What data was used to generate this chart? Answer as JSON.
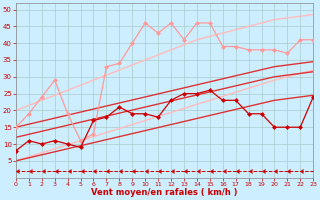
{
  "x": [
    0,
    1,
    2,
    3,
    4,
    5,
    6,
    7,
    8,
    9,
    10,
    11,
    12,
    13,
    14,
    15,
    16,
    17,
    18,
    19,
    20,
    21,
    22,
    23
  ],
  "series": [
    {
      "label": "light_pink_with_markers",
      "y": [
        15,
        19,
        24,
        29,
        19,
        11,
        13,
        33,
        34,
        40,
        46,
        43,
        46,
        41,
        46,
        46,
        39,
        39,
        38,
        38,
        38,
        37,
        41,
        41
      ],
      "color": "#ff9999",
      "lw": 0.9,
      "marker": "D",
      "ms": 2.0,
      "linestyle": "-",
      "zorder": 3
    },
    {
      "label": "dark_red_with_markers",
      "y": [
        8,
        11,
        10,
        11,
        10,
        9,
        17,
        18,
        21,
        19,
        19,
        18,
        23,
        25,
        25,
        26,
        23,
        23,
        19,
        19,
        15,
        15,
        15,
        24
      ],
      "color": "#cc0000",
      "lw": 0.9,
      "marker": "D",
      "ms": 2.0,
      "linestyle": "-",
      "zorder": 3
    },
    {
      "label": "regression_pink_upper",
      "y": [
        20,
        21.5,
        23,
        24.5,
        26,
        27.5,
        29,
        30.5,
        32,
        33.5,
        35,
        36.5,
        38,
        39.5,
        41,
        42,
        43,
        44,
        45,
        46,
        47,
        47.5,
        48,
        48.5
      ],
      "color": "#ffbbbb",
      "lw": 1.0,
      "marker": null,
      "ms": 0,
      "linestyle": "-",
      "zorder": 2
    },
    {
      "label": "regression_pink_lower",
      "y": [
        5,
        6.2,
        7.4,
        8.6,
        9.8,
        11,
        12.2,
        13.4,
        14.6,
        15.8,
        17,
        18.2,
        19.4,
        20.6,
        21.8,
        23,
        24.2,
        25.4,
        26.6,
        27.8,
        29,
        30,
        31,
        32
      ],
      "color": "#ffbbbb",
      "lw": 1.0,
      "marker": null,
      "ms": 0,
      "linestyle": "-",
      "zorder": 2
    },
    {
      "label": "regression_red_upper",
      "y": [
        15,
        15.9,
        16.8,
        17.7,
        18.6,
        19.5,
        20.4,
        21.3,
        22.2,
        23.1,
        24,
        24.9,
        25.8,
        26.7,
        27.6,
        28.5,
        29.4,
        30.3,
        31.2,
        32.1,
        33,
        33.5,
        34,
        34.5
      ],
      "color": "#dd3333",
      "lw": 1.0,
      "marker": null,
      "ms": 0,
      "linestyle": "-",
      "zorder": 2
    },
    {
      "label": "regression_red_mid",
      "y": [
        12,
        12.9,
        13.8,
        14.7,
        15.6,
        16.5,
        17.4,
        18.3,
        19.2,
        20.1,
        21,
        21.9,
        22.8,
        23.7,
        24.6,
        25.5,
        26.4,
        27.3,
        28.2,
        29.1,
        30,
        30.5,
        31,
        31.5
      ],
      "color": "#dd3333",
      "lw": 1.0,
      "marker": null,
      "ms": 0,
      "linestyle": "-",
      "zorder": 2
    },
    {
      "label": "regression_red_lower",
      "y": [
        5,
        5.9,
        6.8,
        7.7,
        8.6,
        9.5,
        10.4,
        11.3,
        12.2,
        13.1,
        14,
        14.9,
        15.8,
        16.7,
        17.6,
        18.5,
        19.4,
        20.3,
        21.2,
        22.1,
        23,
        23.5,
        24,
        24.5
      ],
      "color": "#dd3333",
      "lw": 1.0,
      "marker": null,
      "ms": 0,
      "linestyle": "-",
      "zorder": 2
    },
    {
      "label": "bottom_arrow_line",
      "y": [
        2,
        2,
        2,
        2,
        2,
        2,
        2,
        2,
        2,
        2,
        2,
        2,
        2,
        2,
        2,
        2,
        2,
        2,
        2,
        2,
        2,
        2,
        2,
        2
      ],
      "color": "#cc0000",
      "lw": 0.7,
      "marker": 4,
      "ms": 3.0,
      "linestyle": "--",
      "zorder": 3
    }
  ],
  "xlim": [
    0,
    23
  ],
  "ylim": [
    0,
    52
  ],
  "yticks": [
    5,
    10,
    15,
    20,
    25,
    30,
    35,
    40,
    45,
    50
  ],
  "xticks": [
    0,
    1,
    2,
    3,
    4,
    5,
    6,
    7,
    8,
    9,
    10,
    11,
    12,
    13,
    14,
    15,
    16,
    17,
    18,
    19,
    20,
    21,
    22,
    23
  ],
  "xlabel": "Vent moyen/en rafales ( km/h )",
  "background_color": "#cceeff",
  "grid_color": "#aacccc",
  "xlabel_color": "#cc0000",
  "tick_color": "#cc0000"
}
